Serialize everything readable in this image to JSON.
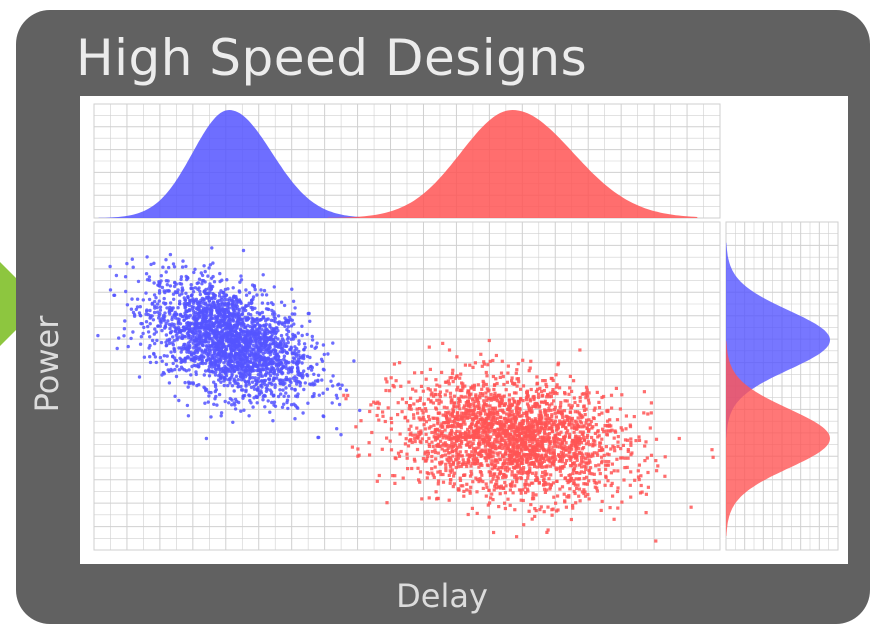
{
  "title": "High Speed Designs",
  "colors": {
    "frame": "#616161",
    "arrow": "#8dc63f",
    "series_blue": "#5555ff",
    "series_red": "#ff5555",
    "grid": "#d0d0d0"
  },
  "chart_data": {
    "type": "scatter",
    "title": "High Speed Designs",
    "xlabel": "Delay",
    "ylabel": "Power",
    "grid": true,
    "legend": "none",
    "xlim": [
      0,
      19
    ],
    "ylim": [
      0,
      10
    ],
    "marginals": "kde density plots on top (delay) and right (power)",
    "series": [
      {
        "color": "#5555ff",
        "marker": "circle",
        "count": 2500,
        "center": [
          4.1,
          6.4
        ],
        "spread": [
          1.2,
          0.9
        ],
        "correlation": -0.45
      },
      {
        "color": "#ff5555",
        "marker": "square",
        "count": 2500,
        "center": [
          12.7,
          3.4
        ],
        "spread": [
          1.7,
          0.9
        ],
        "correlation": -0.2
      }
    ]
  }
}
